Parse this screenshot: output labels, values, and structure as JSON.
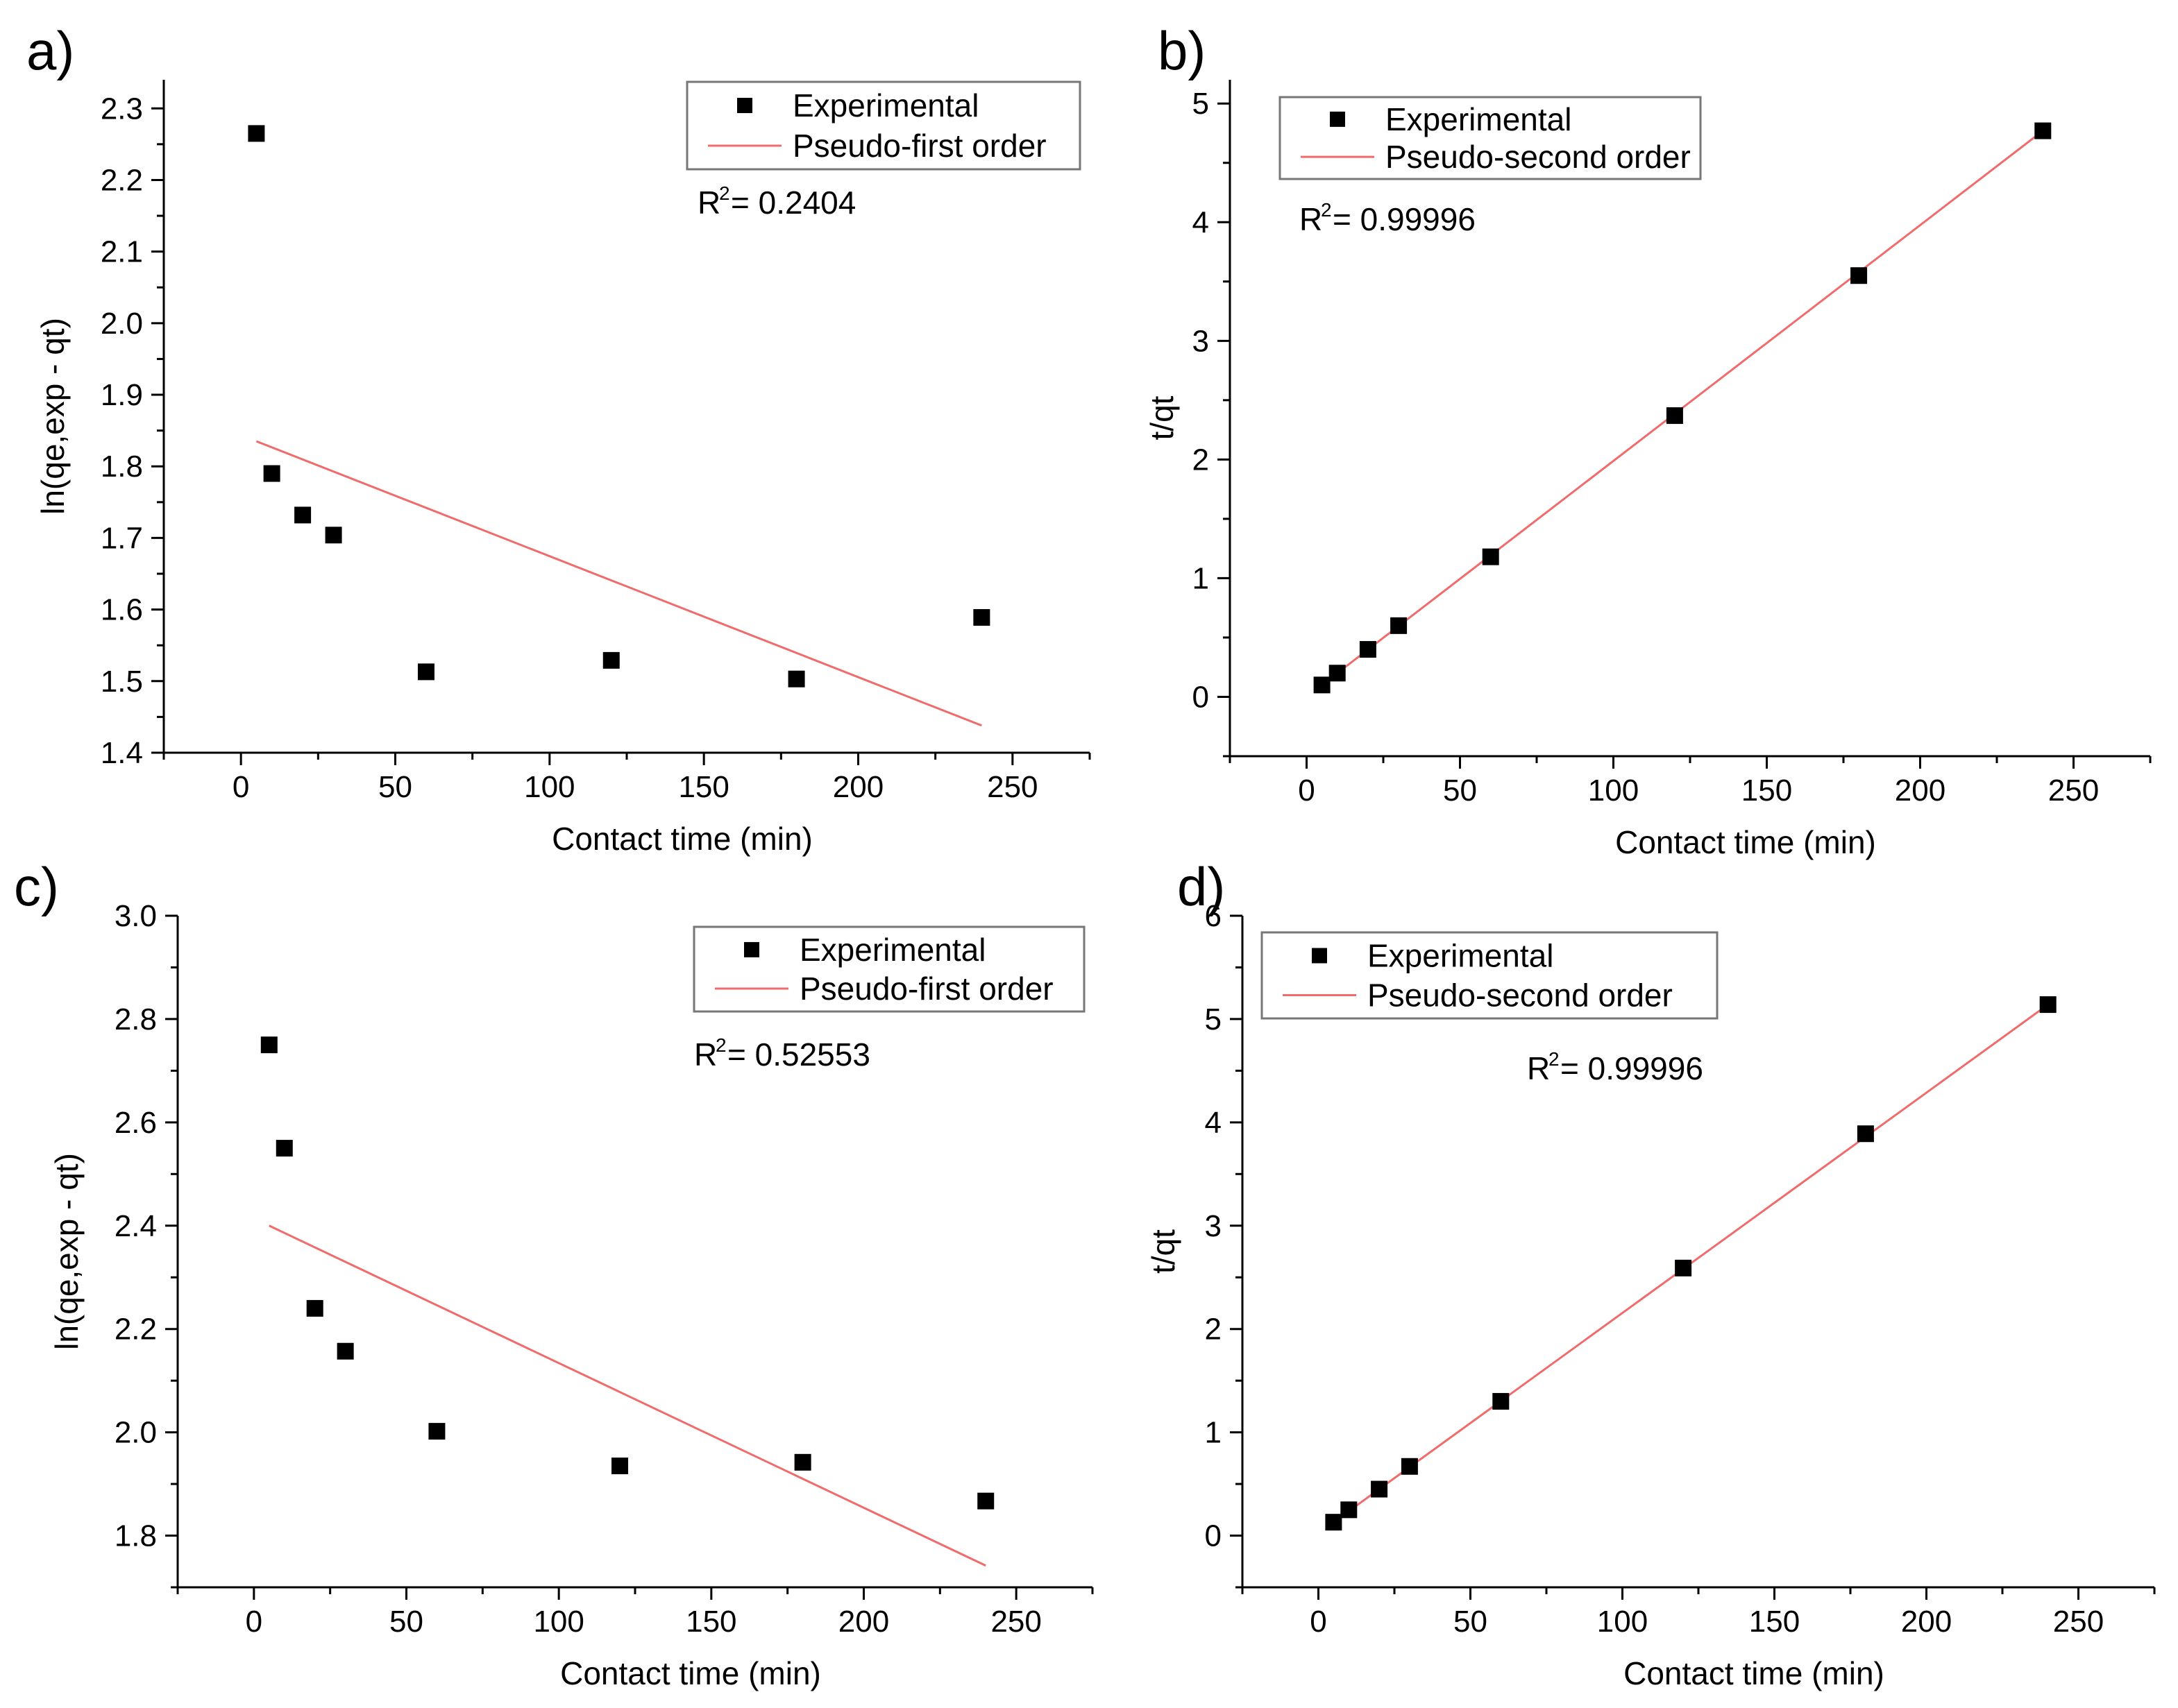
{
  "chart_data": [
    {
      "id": "a",
      "type": "scatter",
      "panel_label": "a)",
      "xlabel": "Contact time (min)",
      "ylabel": "ln(qe,exp - qt)",
      "xlim": [
        -25,
        275
      ],
      "ylim": [
        1.4,
        2.34
      ],
      "xticks": [
        0,
        50,
        100,
        150,
        200,
        250
      ],
      "xtick_labels": [
        "0",
        "50",
        "100",
        "150",
        "200",
        "250"
      ],
      "yticks": [
        1.4,
        1.5,
        1.6,
        1.7,
        1.8,
        1.9,
        2.0,
        2.1,
        2.2,
        2.3
      ],
      "ytick_labels": [
        "1.4",
        "1.5",
        "1.6",
        "1.7",
        "1.8",
        "1.9",
        "2.0",
        "2.1",
        "2.2",
        "2.3"
      ],
      "series": [
        {
          "name": "Experimental",
          "kind": "scatter",
          "x": [
            5,
            10,
            20,
            30,
            60,
            120,
            180,
            240
          ],
          "y": [
            2.265,
            1.79,
            1.732,
            1.704,
            1.513,
            1.529,
            1.503,
            1.589
          ]
        },
        {
          "name": "Pseudo-first order",
          "kind": "line",
          "color": "#f06b6b",
          "x": [
            5,
            240
          ],
          "y": [
            1.835,
            1.438
          ]
        }
      ],
      "annotation": {
        "prefix": "R",
        "sup": "2",
        "text": " = 0.2404"
      },
      "legend_position": "top-right"
    },
    {
      "id": "b",
      "type": "scatter",
      "panel_label": "b)",
      "xlabel": "Contact time (min)",
      "ylabel": "t/qt",
      "xlim": [
        -25,
        275
      ],
      "ylim": [
        -0.5,
        5.2
      ],
      "xticks": [
        0,
        50,
        100,
        150,
        200,
        250
      ],
      "xtick_labels": [
        "0",
        "50",
        "100",
        "150",
        "200",
        "250"
      ],
      "yticks": [
        0,
        1,
        2,
        3,
        4,
        5
      ],
      "ytick_labels": [
        "0",
        "1",
        "2",
        "3",
        "4",
        "5"
      ],
      "series": [
        {
          "name": "Experimental",
          "kind": "scatter",
          "x": [
            5,
            10,
            20,
            30,
            60,
            120,
            180,
            240
          ],
          "y": [
            0.1,
            0.2,
            0.4,
            0.6,
            1.18,
            2.37,
            3.55,
            4.77
          ]
        },
        {
          "name": "Pseudo-second order",
          "kind": "line",
          "color": "#f06b6b",
          "x": [
            5,
            240
          ],
          "y": [
            0.1,
            4.77
          ]
        }
      ],
      "annotation": {
        "prefix": "R",
        "sup": "2",
        "text": " = 0.99996"
      },
      "legend_position": "top-left"
    },
    {
      "id": "c",
      "type": "scatter",
      "panel_label": "c)",
      "xlabel": "Contact time (min)",
      "ylabel": "ln(qe,exp - qt)",
      "xlim": [
        -25,
        275
      ],
      "ylim": [
        1.7,
        3.0
      ],
      "xticks": [
        0,
        50,
        100,
        150,
        200,
        250
      ],
      "xtick_labels": [
        "0",
        "50",
        "100",
        "150",
        "200",
        "250"
      ],
      "yticks": [
        1.8,
        2.0,
        2.2,
        2.4,
        2.6,
        2.8,
        3.0
      ],
      "ytick_labels": [
        "1.8",
        "2.0",
        "2.2",
        "2.4",
        "2.6",
        "2.8",
        "3.0"
      ],
      "series": [
        {
          "name": "Experimental",
          "kind": "scatter",
          "x": [
            5,
            10,
            20,
            30,
            60,
            120,
            180,
            240
          ],
          "y": [
            2.75,
            2.55,
            2.24,
            2.157,
            2.002,
            1.935,
            1.942,
            1.867
          ]
        },
        {
          "name": "Pseudo-first order",
          "kind": "line",
          "color": "#f06b6b",
          "x": [
            5,
            240
          ],
          "y": [
            2.4,
            1.742
          ]
        }
      ],
      "annotation": {
        "prefix": "R",
        "sup": "2",
        "text": " = 0.52553"
      },
      "legend_position": "top-right"
    },
    {
      "id": "d",
      "type": "scatter",
      "panel_label": "d)",
      "xlabel": "Contact time (min)",
      "ylabel": "t/qt",
      "xlim": [
        -25,
        275
      ],
      "ylim": [
        -0.5,
        6.0
      ],
      "xticks": [
        0,
        50,
        100,
        150,
        200,
        250
      ],
      "xtick_labels": [
        "0",
        "50",
        "100",
        "150",
        "200",
        "250"
      ],
      "yticks": [
        0,
        1,
        2,
        3,
        4,
        5,
        6
      ],
      "ytick_labels": [
        "0",
        "1",
        "2",
        "3",
        "4",
        "5",
        "6"
      ],
      "series": [
        {
          "name": "Experimental",
          "kind": "scatter",
          "x": [
            5,
            10,
            20,
            30,
            60,
            120,
            180,
            240
          ],
          "y": [
            0.13,
            0.25,
            0.45,
            0.67,
            1.3,
            2.59,
            3.89,
            5.14
          ]
        },
        {
          "name": "Pseudo-second order",
          "kind": "line",
          "color": "#f06b6b",
          "x": [
            5,
            240
          ],
          "y": [
            0.13,
            5.14
          ]
        }
      ],
      "annotation": {
        "prefix": "R",
        "sup": "2",
        "text": " = 0.99996"
      },
      "legend_position": "top-left"
    }
  ]
}
